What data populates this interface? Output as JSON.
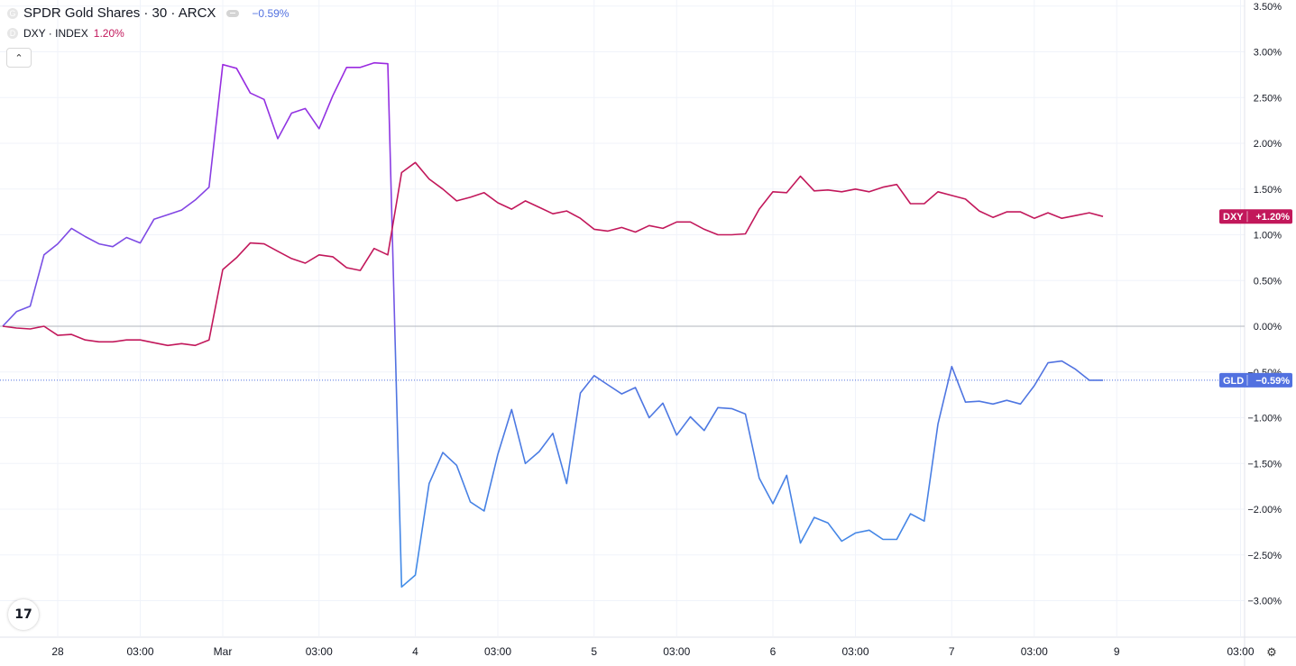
{
  "legend": {
    "gld": {
      "symbol_letter": "G",
      "title": "SPDR Gold Shares · 30 · ARCX",
      "change": "−0.59%"
    },
    "dxy": {
      "symbol_letter": "D",
      "title": "DXY · INDEX",
      "change": "1.20%"
    }
  },
  "icons": {
    "collapse": "chevron-up-icon",
    "logo": "tradingview-logo-icon",
    "settings": "gear-icon"
  },
  "logo_text": "17",
  "collapse_glyph": "⌃",
  "settings_glyph": "⚙",
  "colors": {
    "gld_above": "#9c27e0",
    "gld_below": "#5271e0",
    "gld_below_dark": "#3f8ee8",
    "dxy": "#c2185b",
    "zero": "#b2b5be",
    "grid": "#f0f3fa",
    "axis_text": "#131722"
  },
  "chart_data": {
    "type": "line",
    "yunit": "%",
    "ylim": [
      -3.2,
      3.5
    ],
    "y_ticks": [
      3.5,
      3.0,
      2.5,
      2.0,
      1.5,
      1.0,
      0.5,
      0.0,
      -0.5,
      -1.0,
      -1.5,
      -2.0,
      -2.5,
      -3.0
    ],
    "y_tick_labels": [
      "3.50%",
      "3.00%",
      "2.50%",
      "2.00%",
      "1.50%",
      "1.00%",
      "0.50%",
      "0.00%",
      "−0.50%",
      "−1.00%",
      "−1.50%",
      "−2.00%",
      "−2.50%",
      "−3.00%"
    ],
    "x_ticks": [
      {
        "label": "28",
        "pos": 4
      },
      {
        "label": "03:00",
        "pos": 10
      },
      {
        "label": "Mar",
        "pos": 16
      },
      {
        "label": "03:00",
        "pos": 23
      },
      {
        "label": "4",
        "pos": 30
      },
      {
        "label": "03:00",
        "pos": 36
      },
      {
        "label": "5",
        "pos": 43
      },
      {
        "label": "03:00",
        "pos": 49
      },
      {
        "label": "6",
        "pos": 56
      },
      {
        "label": "03:00",
        "pos": 62
      },
      {
        "label": "7",
        "pos": 69
      },
      {
        "label": "03:00",
        "pos": 75
      },
      {
        "label": "9",
        "pos": 81
      },
      {
        "label": "03:00",
        "pos": 90
      }
    ],
    "series": [
      {
        "name": "GLD",
        "label": "GLD",
        "last_value": "−0.59%",
        "values": [
          0.0,
          0.16,
          0.22,
          0.78,
          0.9,
          1.07,
          0.98,
          0.9,
          0.87,
          0.97,
          0.91,
          1.17,
          1.22,
          1.27,
          1.38,
          1.52,
          2.86,
          2.82,
          2.55,
          2.48,
          2.05,
          2.33,
          2.38,
          2.16,
          2.52,
          2.83,
          2.83,
          2.88,
          2.87,
          -2.85,
          -2.72,
          -1.72,
          -1.38,
          -1.52,
          -1.92,
          -2.02,
          -1.4,
          -0.91,
          -1.5,
          -1.37,
          -1.17,
          -1.72,
          -0.73,
          -0.54,
          -0.64,
          -0.74,
          -0.67,
          -1.0,
          -0.84,
          -1.19,
          -0.99,
          -1.14,
          -0.89,
          -0.9,
          -0.96,
          -1.66,
          -1.94,
          -1.63,
          -2.37,
          -2.09,
          -2.15,
          -2.35,
          -2.26,
          -2.23,
          -2.33,
          -2.33,
          -2.05,
          -2.13,
          -1.07,
          -0.44,
          -0.83,
          -0.82,
          -0.85,
          -0.81,
          -0.85,
          -0.65,
          -0.4,
          -0.38,
          -0.47,
          -0.59,
          -0.59
        ]
      },
      {
        "name": "DXY",
        "label": "DXY",
        "last_value": "+1.20%",
        "values": [
          0.0,
          -0.02,
          -0.03,
          0.0,
          -0.1,
          -0.09,
          -0.15,
          -0.17,
          -0.17,
          -0.15,
          -0.15,
          -0.18,
          -0.21,
          -0.19,
          -0.21,
          -0.15,
          0.62,
          0.75,
          0.91,
          0.9,
          0.82,
          0.74,
          0.69,
          0.78,
          0.76,
          0.64,
          0.61,
          0.85,
          0.78,
          1.68,
          1.79,
          1.61,
          1.5,
          1.37,
          1.41,
          1.46,
          1.35,
          1.28,
          1.37,
          1.3,
          1.23,
          1.26,
          1.18,
          1.06,
          1.04,
          1.08,
          1.03,
          1.1,
          1.07,
          1.14,
          1.14,
          1.06,
          1.0,
          1.0,
          1.01,
          1.28,
          1.47,
          1.46,
          1.64,
          1.48,
          1.49,
          1.47,
          1.5,
          1.47,
          1.52,
          1.55,
          1.34,
          1.34,
          1.47,
          1.43,
          1.39,
          1.26,
          1.19,
          1.25,
          1.25,
          1.18,
          1.24,
          1.18,
          1.21,
          1.24,
          1.2
        ]
      }
    ]
  }
}
